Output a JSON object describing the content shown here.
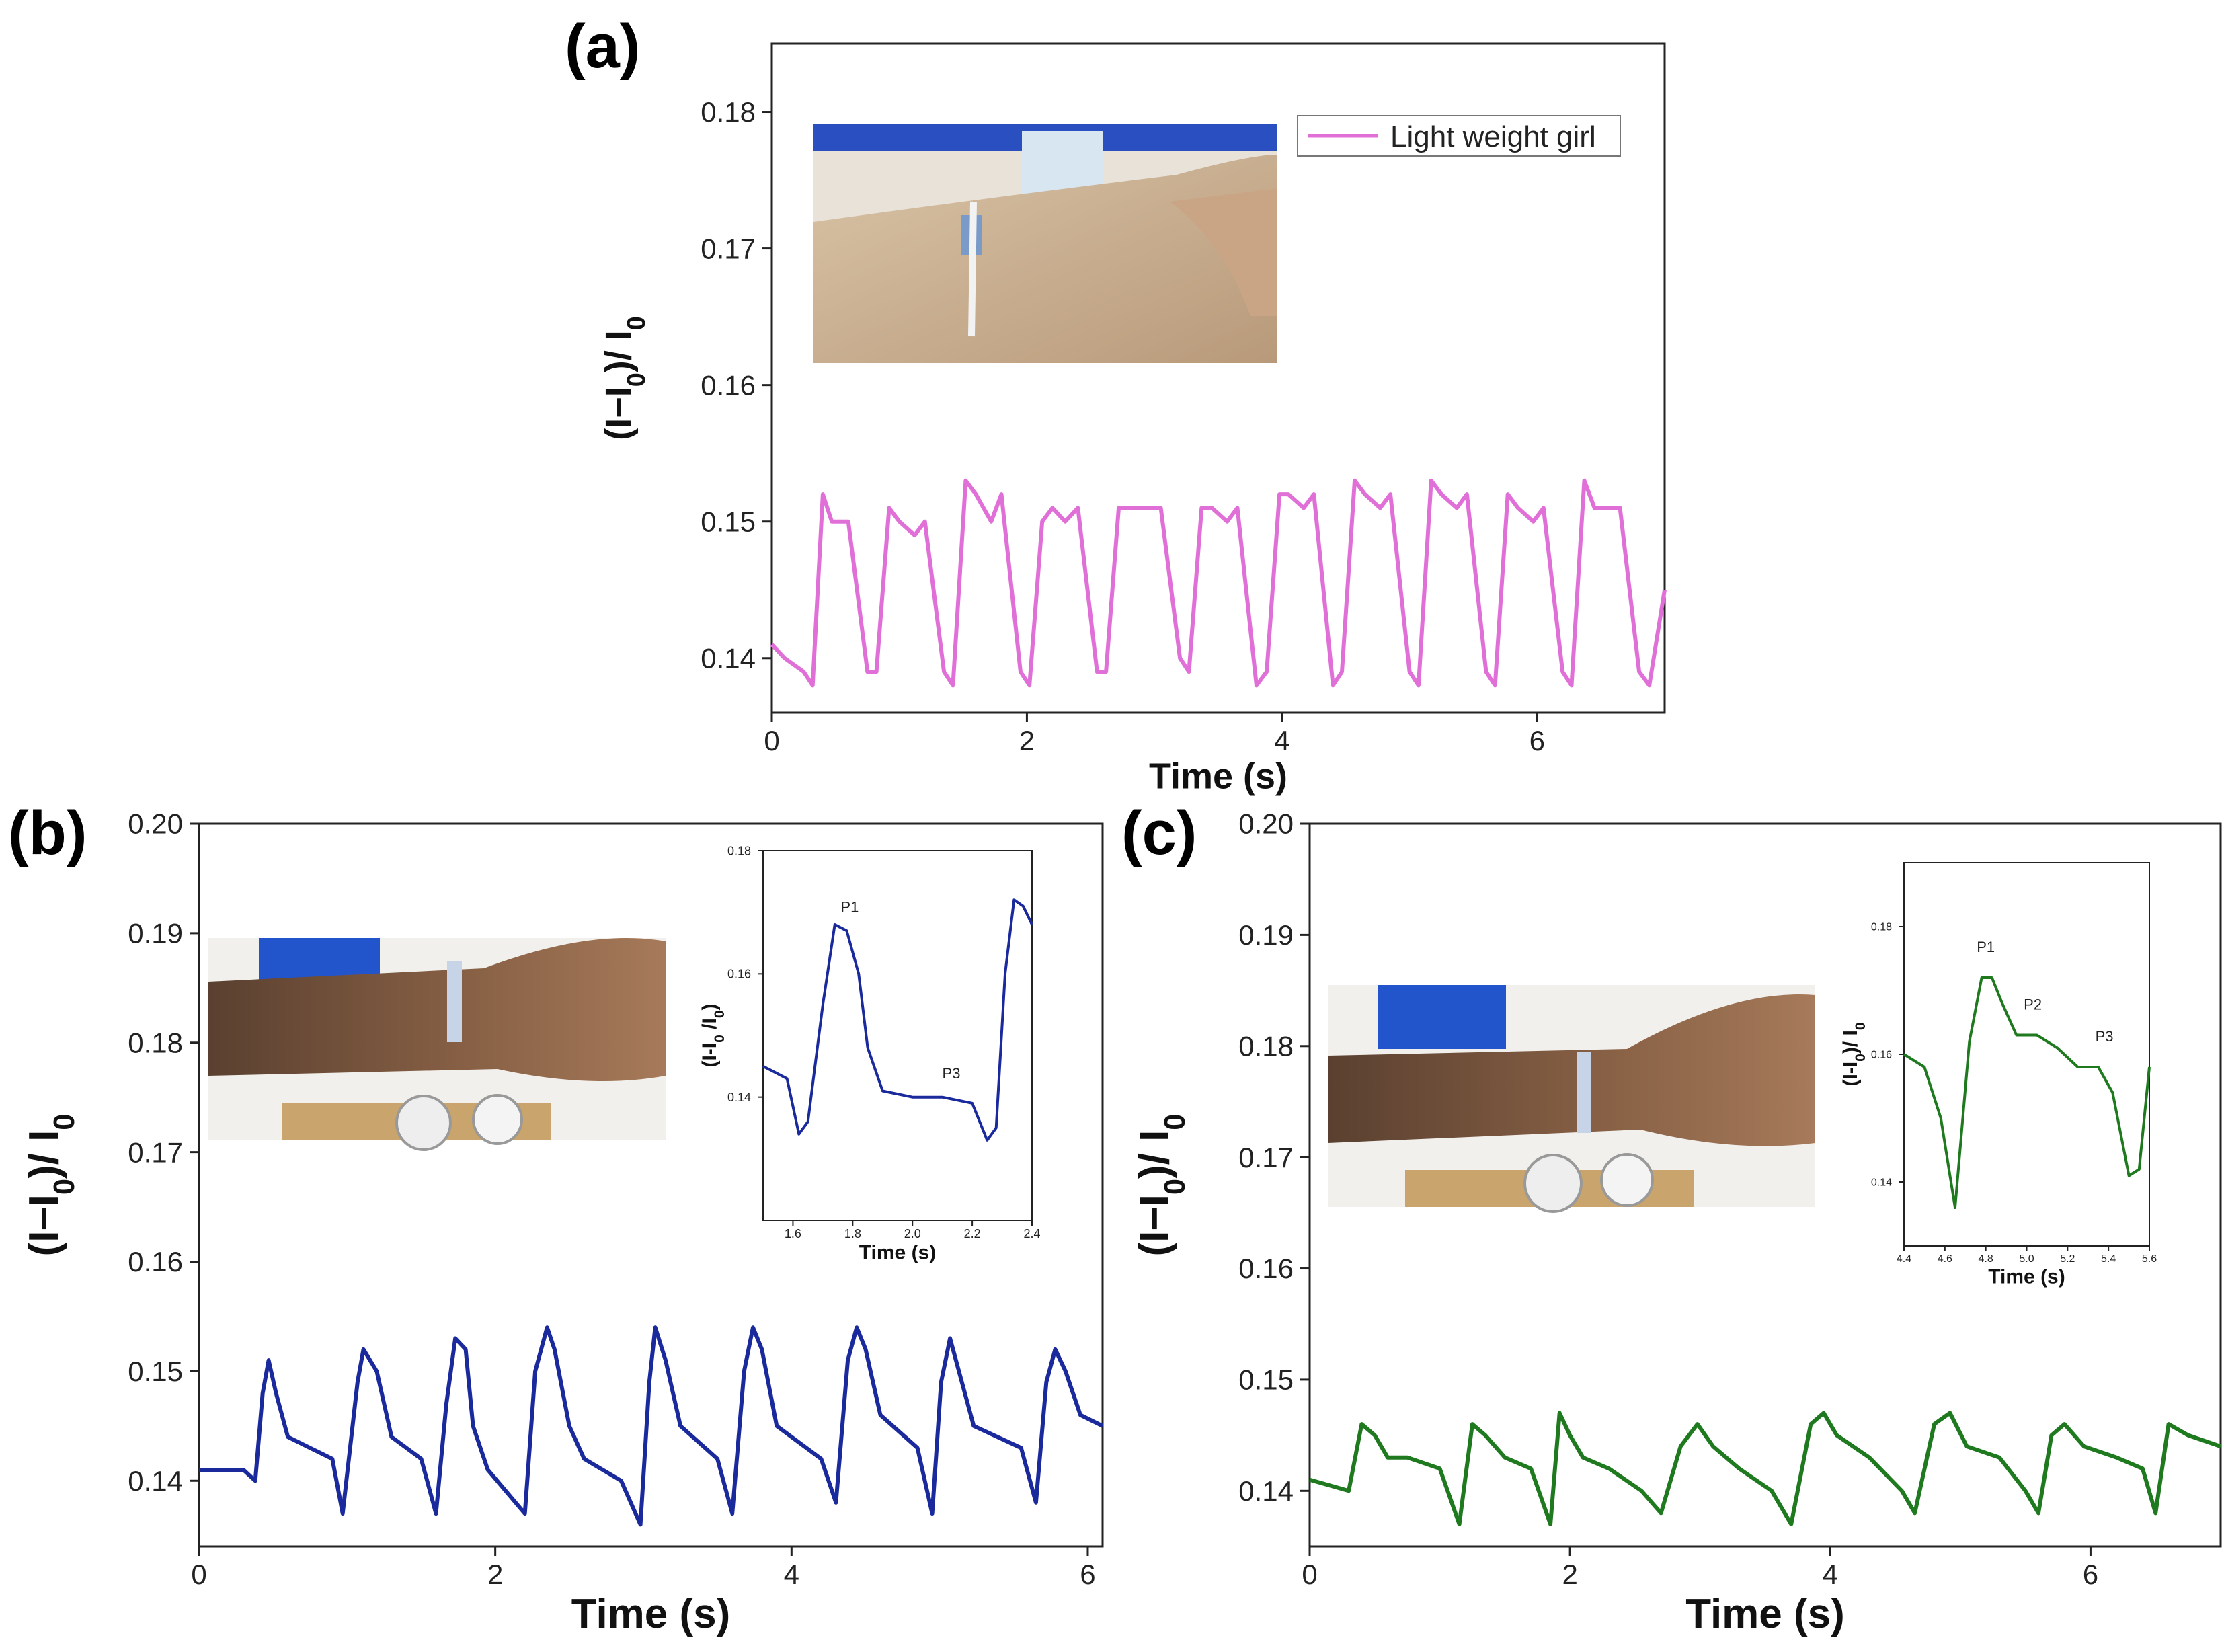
{
  "chart_data": [
    {
      "panel": "(a)",
      "type": "line",
      "xlabel": "Time (s)",
      "ylabel": "(I−I0)/ I0",
      "xlim": [
        0,
        7
      ],
      "ylim": [
        0.136,
        0.185
      ],
      "xticks": [
        "0",
        "2",
        "4",
        "6"
      ],
      "yticks": [
        "0.14",
        "0.15",
        "0.16",
        "0.17",
        "0.18"
      ],
      "color": "#e070d8",
      "series": [
        {
          "name": "Light weight girl",
          "x": [
            0,
            0.1,
            0.25,
            0.32,
            0.4,
            0.47,
            0.55,
            0.6,
            0.75,
            0.82,
            0.92,
            1.0,
            1.12,
            1.2,
            1.35,
            1.42,
            1.52,
            1.6,
            1.72,
            1.8,
            1.95,
            2.02,
            2.12,
            2.2,
            2.3,
            2.4,
            2.55,
            2.62,
            2.72,
            2.8,
            2.95,
            3.05,
            3.2,
            3.27,
            3.37,
            3.45,
            3.57,
            3.65,
            3.8,
            3.88,
            3.98,
            4.05,
            4.17,
            4.25,
            4.4,
            4.47,
            4.57,
            4.65,
            4.77,
            4.85,
            5.0,
            5.07,
            5.17,
            5.25,
            5.37,
            5.45,
            5.6,
            5.67,
            5.77,
            5.85,
            5.97,
            6.05,
            6.2,
            6.27,
            6.37,
            6.45,
            6.57,
            6.65,
            6.8,
            6.88,
            7.0
          ],
          "y": [
            0.141,
            0.14,
            0.139,
            0.138,
            0.152,
            0.15,
            0.15,
            0.15,
            0.139,
            0.139,
            0.151,
            0.15,
            0.149,
            0.15,
            0.139,
            0.138,
            0.153,
            0.152,
            0.15,
            0.152,
            0.139,
            0.138,
            0.15,
            0.151,
            0.15,
            0.151,
            0.139,
            0.139,
            0.151,
            0.151,
            0.151,
            0.151,
            0.14,
            0.139,
            0.151,
            0.151,
            0.15,
            0.151,
            0.138,
            0.139,
            0.152,
            0.152,
            0.151,
            0.152,
            0.138,
            0.139,
            0.153,
            0.152,
            0.151,
            0.152,
            0.139,
            0.138,
            0.153,
            0.152,
            0.151,
            0.152,
            0.139,
            0.138,
            0.152,
            0.151,
            0.15,
            0.151,
            0.139,
            0.138,
            0.153,
            0.151,
            0.151,
            0.151,
            0.139,
            0.138,
            0.145
          ]
        }
      ],
      "legend_position": "top-right",
      "inset_photo": "wrist-sensor-photo"
    },
    {
      "panel": "(b)",
      "type": "line",
      "xlabel": "Time (s)",
      "ylabel": "(I−I0)/ I0",
      "xlim": [
        0,
        6.1
      ],
      "ylim": [
        0.134,
        0.2
      ],
      "xticks": [
        "0",
        "2",
        "4",
        "6"
      ],
      "yticks": [
        "0.14",
        "0.15",
        "0.16",
        "0.17",
        "0.18",
        "0.19",
        "0.20"
      ],
      "color": "#1a2a9c",
      "series": [
        {
          "name": "",
          "x": [
            0,
            0.3,
            0.38,
            0.43,
            0.47,
            0.52,
            0.6,
            0.75,
            0.9,
            0.97,
            1.07,
            1.11,
            1.2,
            1.3,
            1.5,
            1.6,
            1.67,
            1.73,
            1.8,
            1.85,
            1.95,
            2.2,
            2.27,
            2.35,
            2.4,
            2.5,
            2.6,
            2.85,
            2.98,
            3.04,
            3.08,
            3.15,
            3.25,
            3.5,
            3.6,
            3.68,
            3.74,
            3.8,
            3.9,
            4.2,
            4.3,
            4.38,
            4.44,
            4.5,
            4.6,
            4.85,
            4.95,
            5.01,
            5.07,
            5.13,
            5.23,
            5.55,
            5.65,
            5.72,
            5.78,
            5.85,
            5.95,
            6.1
          ],
          "y": [
            0.141,
            0.141,
            0.14,
            0.148,
            0.151,
            0.148,
            0.144,
            0.143,
            0.142,
            0.137,
            0.149,
            0.152,
            0.15,
            0.144,
            0.142,
            0.137,
            0.147,
            0.153,
            0.152,
            0.145,
            0.141,
            0.137,
            0.15,
            0.154,
            0.152,
            0.145,
            0.142,
            0.14,
            0.136,
            0.149,
            0.154,
            0.151,
            0.145,
            0.142,
            0.137,
            0.15,
            0.154,
            0.152,
            0.145,
            0.142,
            0.138,
            0.151,
            0.154,
            0.152,
            0.146,
            0.143,
            0.137,
            0.149,
            0.153,
            0.15,
            0.145,
            0.143,
            0.138,
            0.149,
            0.152,
            0.15,
            0.146,
            0.145
          ]
        }
      ],
      "inset": {
        "xlabel": "Time (s)",
        "ylabel": "(I-I0 /I0)",
        "xlim": [
          1.5,
          2.4
        ],
        "ylim": [
          0.12,
          0.18
        ],
        "xticks": [
          "1.6",
          "1.8",
          "2.0",
          "2.2",
          "2.4"
        ],
        "yticks": [
          "0.14",
          "0.16",
          "0.18"
        ],
        "annotations": [
          "P1",
          "P3"
        ],
        "x": [
          1.5,
          1.58,
          1.62,
          1.65,
          1.7,
          1.74,
          1.78,
          1.82,
          1.85,
          1.9,
          2.0,
          2.1,
          2.2,
          2.25,
          2.28,
          2.31,
          2.34,
          2.37,
          2.4
        ],
        "y": [
          0.145,
          0.143,
          0.134,
          0.136,
          0.155,
          0.168,
          0.167,
          0.16,
          0.148,
          0.141,
          0.14,
          0.14,
          0.139,
          0.133,
          0.135,
          0.16,
          0.172,
          0.171,
          0.168
        ]
      },
      "inset_photo": "wrist-sensor-photo"
    },
    {
      "panel": "(c)",
      "type": "line",
      "xlabel": "Time (s)",
      "ylabel": "(I−I0)/ I0",
      "xlim": [
        0,
        7
      ],
      "ylim": [
        0.135,
        0.2
      ],
      "xticks": [
        "0",
        "2",
        "4",
        "6"
      ],
      "yticks": [
        "0.14",
        "0.15",
        "0.16",
        "0.17",
        "0.18",
        "0.19",
        "0.20"
      ],
      "color": "#1f7a1f",
      "series": [
        {
          "name": "",
          "x": [
            0,
            0.3,
            0.4,
            0.5,
            0.6,
            0.75,
            1.0,
            1.15,
            1.25,
            1.35,
            1.5,
            1.7,
            1.85,
            1.92,
            2.0,
            2.1,
            2.3,
            2.55,
            2.7,
            2.85,
            2.98,
            3.1,
            3.3,
            3.55,
            3.7,
            3.85,
            3.95,
            4.05,
            4.3,
            4.55,
            4.65,
            4.8,
            4.92,
            5.05,
            5.3,
            5.5,
            5.6,
            5.7,
            5.8,
            5.95,
            6.2,
            6.4,
            6.5,
            6.6,
            6.75,
            7.0
          ],
          "y": [
            0.141,
            0.14,
            0.146,
            0.145,
            0.143,
            0.143,
            0.142,
            0.137,
            0.146,
            0.145,
            0.143,
            0.142,
            0.137,
            0.147,
            0.145,
            0.143,
            0.142,
            0.14,
            0.138,
            0.144,
            0.146,
            0.144,
            0.142,
            0.14,
            0.137,
            0.146,
            0.147,
            0.145,
            0.143,
            0.14,
            0.138,
            0.146,
            0.147,
            0.144,
            0.143,
            0.14,
            0.138,
            0.145,
            0.146,
            0.144,
            0.143,
            0.142,
            0.138,
            0.146,
            0.145,
            0.144
          ]
        }
      ],
      "inset": {
        "xlabel": "Time (s)",
        "ylabel": "(I-I0)/ I0",
        "xlim": [
          4.4,
          5.6
        ],
        "ylim": [
          0.13,
          0.19
        ],
        "xticks": [
          "4.4",
          "4.6",
          "4.8",
          "5.0",
          "5.2",
          "5.4",
          "5.6"
        ],
        "yticks": [
          "0.14",
          "0.16",
          "0.18"
        ],
        "annotations": [
          "P1",
          "P2",
          "P3"
        ],
        "x": [
          4.4,
          4.5,
          4.58,
          4.65,
          4.72,
          4.78,
          4.83,
          4.88,
          4.95,
          5.05,
          5.15,
          5.25,
          5.35,
          5.42,
          5.5,
          5.55,
          5.6
        ],
        "y": [
          0.16,
          0.158,
          0.15,
          0.136,
          0.162,
          0.172,
          0.172,
          0.168,
          0.163,
          0.163,
          0.161,
          0.158,
          0.158,
          0.154,
          0.141,
          0.142,
          0.158
        ]
      },
      "inset_photo": "wrist-sensor-photo"
    }
  ]
}
